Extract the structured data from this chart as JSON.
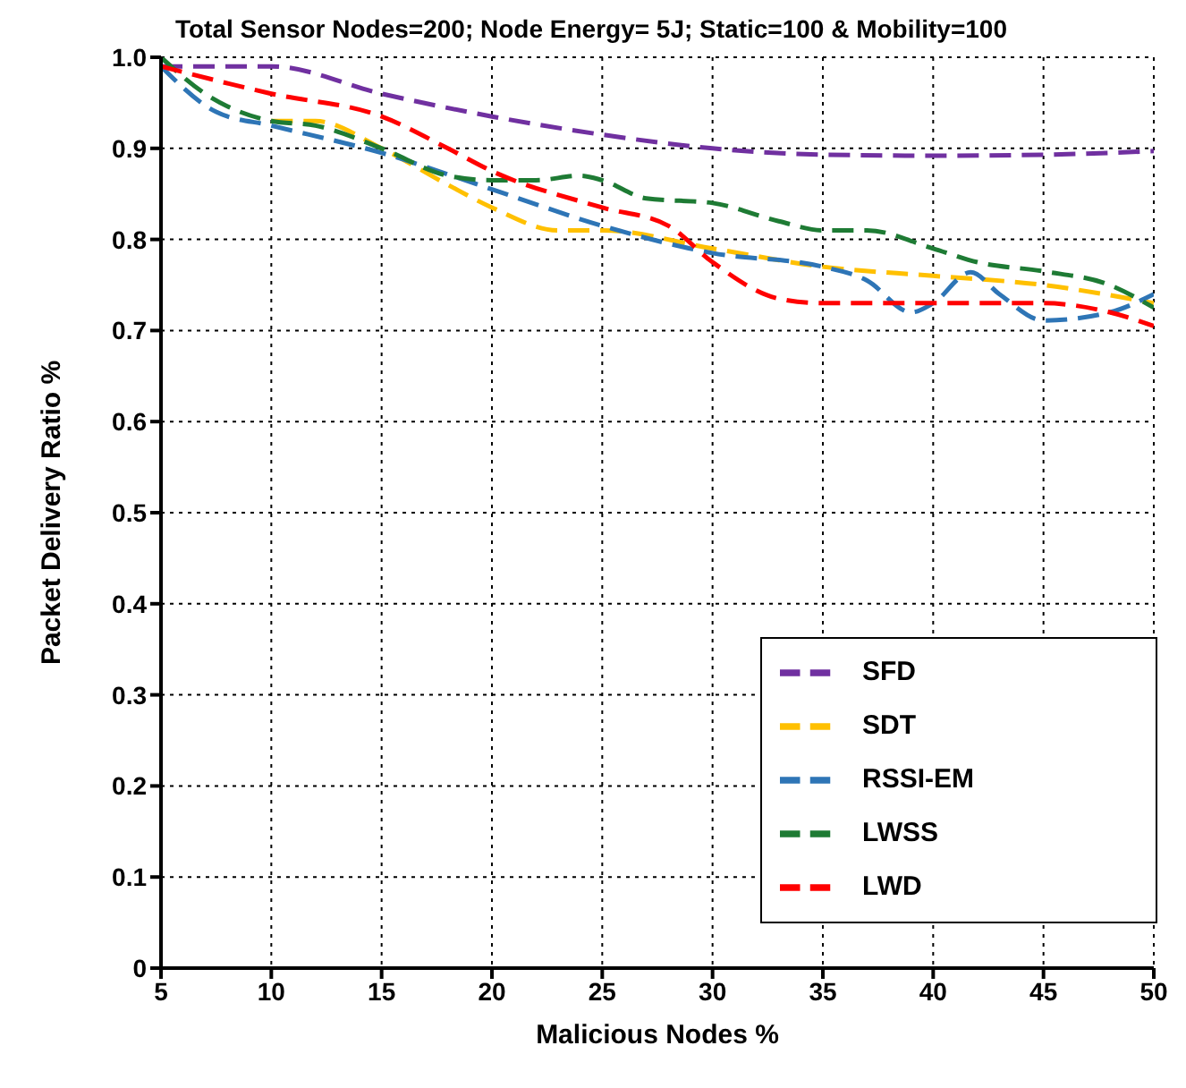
{
  "chart_data": {
    "type": "line",
    "title": "Total Sensor Nodes=200; Node Energy= 5J; Static=100 & Mobility=100",
    "xlabel": "Malicious Nodes %",
    "ylabel": "Packet Delivery Ratio %",
    "xlim": [
      5,
      50
    ],
    "xticks": [
      5,
      10,
      15,
      20,
      25,
      30,
      35,
      40,
      45,
      50
    ],
    "ylim": [
      0,
      1
    ],
    "yticks": [
      0,
      0.1,
      0.2,
      0.3,
      0.4,
      0.5,
      0.6,
      0.7,
      0.8,
      0.9,
      {
        "value": 1,
        "label": "1.0"
      }
    ],
    "grid": true,
    "legend": "bottom right",
    "line_style": "dashed",
    "marker": "none",
    "series": [
      {
        "name": "SFD",
        "color": "#7030a0",
        "x": [
          5,
          10,
          15,
          20,
          25,
          30,
          35,
          40,
          45,
          50
        ],
        "values": [
          0.99,
          0.99,
          0.96,
          0.935,
          0.915,
          0.9,
          0.893,
          0.892,
          0.893,
          0.897
        ]
      },
      {
        "name": "SDT",
        "color": "#ffc000",
        "x": [
          10,
          12,
          15,
          18,
          20,
          23,
          25,
          30,
          35,
          40,
          45,
          50
        ],
        "values": [
          0.93,
          0.93,
          0.9,
          0.86,
          0.835,
          0.81,
          0.81,
          0.79,
          0.77,
          0.76,
          0.75,
          0.73
        ]
      },
      {
        "name": "RSSI-EM",
        "color": "#2e75b6",
        "x": [
          5,
          7.5,
          10,
          15,
          20,
          25,
          30,
          35,
          37,
          39,
          40,
          41.7,
          43,
          45,
          48,
          50
        ],
        "values": [
          0.99,
          0.94,
          0.925,
          0.895,
          0.855,
          0.815,
          0.785,
          0.77,
          0.755,
          0.72,
          0.73,
          0.764,
          0.74,
          0.711,
          0.72,
          0.74
        ]
      },
      {
        "name": "LWSS",
        "color": "#1e7b34",
        "x": [
          5,
          7,
          10,
          12,
          15,
          18,
          20,
          22,
          24,
          25,
          27,
          30,
          33,
          35,
          37,
          40,
          42,
          45,
          48,
          50
        ],
        "values": [
          1,
          0.96,
          0.93,
          0.925,
          0.9,
          0.87,
          0.865,
          0.865,
          0.87,
          0.865,
          0.845,
          0.84,
          0.82,
          0.81,
          0.81,
          0.79,
          0.775,
          0.765,
          0.75,
          0.725
        ]
      },
      {
        "name": "LWD",
        "color": "#ff0000",
        "x": [
          5,
          10,
          15,
          18,
          20,
          25,
          28,
          30,
          33,
          35,
          40,
          45,
          48,
          50
        ],
        "values": [
          0.99,
          0.96,
          0.935,
          0.9,
          0.875,
          0.835,
          0.815,
          0.775,
          0.735,
          0.73,
          0.73,
          0.73,
          0.72,
          0.705
        ]
      }
    ]
  }
}
